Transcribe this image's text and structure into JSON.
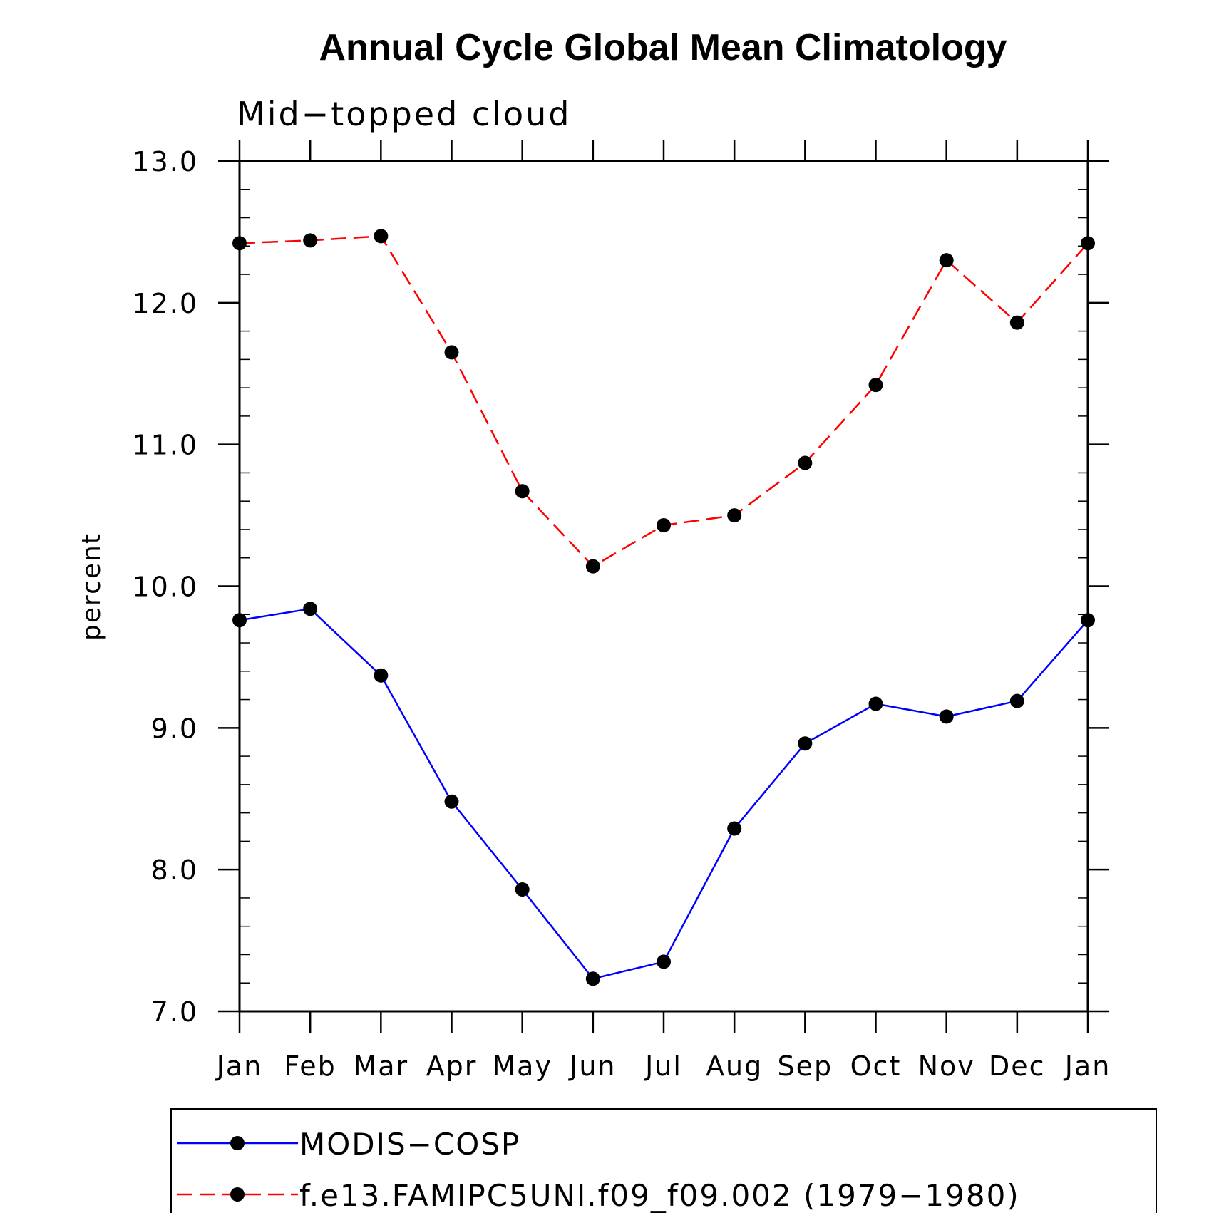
{
  "chart_data": {
    "type": "line",
    "title": "Annual Cycle Global Mean Climatology",
    "subtitle": "Mid−topped cloud",
    "ylabel": "percent",
    "xlabel": "",
    "ylim": [
      7.0,
      13.0
    ],
    "y_major_ticks": [
      7.0,
      8.0,
      9.0,
      10.0,
      11.0,
      12.0,
      13.0
    ],
    "y_tick_labels": [
      "7.0",
      "8.0",
      "9.0",
      "10.0",
      "11.0",
      "12.0",
      "13.0"
    ],
    "categories": [
      "Jan",
      "Feb",
      "Mar",
      "Apr",
      "May",
      "Jun",
      "Jul",
      "Aug",
      "Sep",
      "Oct",
      "Nov",
      "Dec",
      "Jan"
    ],
    "series": [
      {
        "name": "MODIS−COSP",
        "color": "#0000ff",
        "line_style": "solid",
        "marker": "filled-circle",
        "values": [
          9.76,
          9.84,
          9.37,
          8.48,
          7.86,
          7.23,
          7.35,
          8.29,
          8.89,
          9.17,
          9.08,
          9.19,
          9.76
        ]
      },
      {
        "name": "f.e13.FAMIPC5UNI.f09_f09.002 (1979−1980)",
        "color": "#ff0000",
        "line_style": "dashed",
        "marker": "filled-circle",
        "values": [
          12.42,
          12.44,
          12.47,
          11.65,
          10.67,
          10.14,
          10.43,
          10.5,
          10.87,
          11.42,
          12.3,
          11.86,
          12.42
        ]
      }
    ],
    "legend_position": "bottom",
    "grid": false,
    "marker_color": "#000000"
  }
}
